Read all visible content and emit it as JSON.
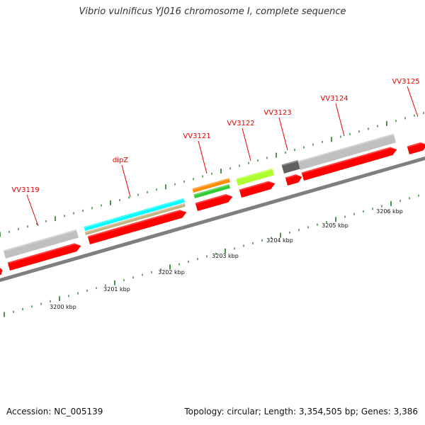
{
  "title": "Vibrio vulnificus YJ016 chromosome I, complete sequence",
  "footer": {
    "accession": "Accession: NC_005139",
    "summary": "Topology: circular; Length: 3,354,505 bp; Genes: 3,386"
  },
  "colors": {
    "cds": "#ff0000",
    "backbone": "#808080",
    "label": "#e60000",
    "tick": "#1f7a1f"
  },
  "gene_labels": [
    "VV3119",
    "dipZ",
    "VV3121",
    "VV3122",
    "VV3123",
    "VV3124",
    "VV3125"
  ],
  "scale_labels": [
    "3200 kbp",
    "3201 kbp",
    "3202 kbp",
    "3203 kbp",
    "3204 kbp",
    "3205 kbp",
    "3206 kbp"
  ],
  "features": [
    {
      "kind": "cds",
      "color": "#ff0000"
    },
    {
      "kind": "gene",
      "color": "#c0c0c0"
    },
    {
      "kind": "cds",
      "color": "#ff0000"
    },
    {
      "kind": "misc",
      "color": "#00ffff"
    },
    {
      "kind": "misc",
      "color": "#c2b280"
    },
    {
      "kind": "cds",
      "color": "#ff0000"
    },
    {
      "kind": "misc",
      "color": "#ff8c00"
    },
    {
      "kind": "misc",
      "color": "#33cc33"
    },
    {
      "kind": "cds",
      "color": "#ff0000"
    },
    {
      "kind": "misc",
      "color": "#adff2f"
    },
    {
      "kind": "cds",
      "color": "#ff0000"
    },
    {
      "kind": "gene",
      "color": "#606060"
    },
    {
      "kind": "cds",
      "color": "#ff0000"
    },
    {
      "kind": "gene",
      "color": "#c0c0c0"
    },
    {
      "kind": "cds",
      "color": "#ff0000"
    },
    {
      "kind": "cds",
      "color": "#ff0000"
    }
  ]
}
